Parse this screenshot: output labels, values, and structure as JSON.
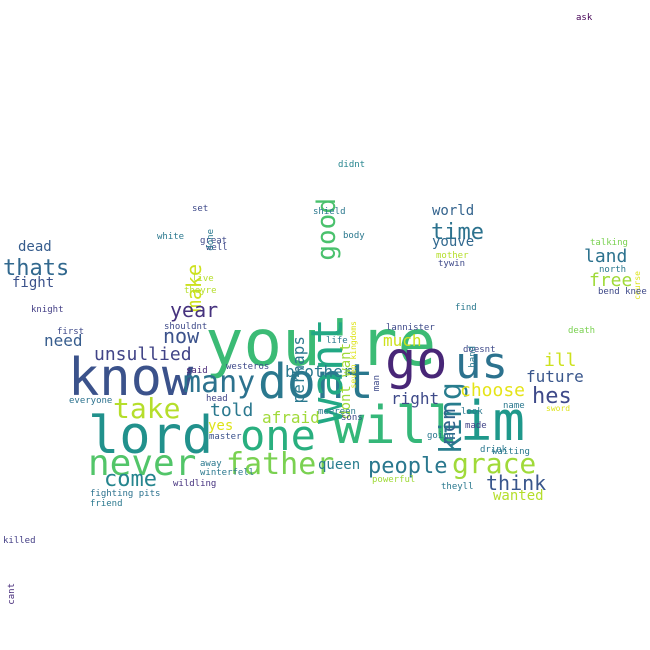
{
  "words": [
    {
      "text": "you're",
      "color": "#3bbb75"
    },
    {
      "text": "know",
      "color": "#3b528b"
    },
    {
      "text": "lord",
      "color": "#21918c"
    },
    {
      "text": "will",
      "color": "#35b779"
    },
    {
      "text": "im",
      "color": "#1f988b"
    },
    {
      "text": "dont",
      "color": "#2a788e"
    },
    {
      "text": "go",
      "color": "#482677"
    },
    {
      "text": "us",
      "color": "#2c728e"
    },
    {
      "text": "want",
      "color": "#22a884"
    },
    {
      "text": "one",
      "color": "#29af7f"
    },
    {
      "text": "never",
      "color": "#52c569"
    },
    {
      "text": "father",
      "color": "#7ad151"
    },
    {
      "text": "king",
      "color": "#287d8e"
    },
    {
      "text": "grace",
      "color": "#a0da39"
    },
    {
      "text": "many",
      "color": "#2c728e"
    },
    {
      "text": "good",
      "color": "#4ac16d"
    },
    {
      "text": "take",
      "color": "#b5de2b"
    },
    {
      "text": "people",
      "color": "#2a788e"
    },
    {
      "text": "hes",
      "color": "#3e4989"
    },
    {
      "text": "come",
      "color": "#25858e"
    },
    {
      "text": "thats",
      "color": "#31688e"
    },
    {
      "text": "time",
      "color": "#2c728e"
    },
    {
      "text": "men",
      "color": "#33638d"
    },
    {
      "text": "make",
      "color": "#cde11d"
    },
    {
      "text": "now",
      "color": "#3b528b"
    },
    {
      "text": "year",
      "color": "#46327e"
    },
    {
      "text": "think",
      "color": "#39568c"
    },
    {
      "text": "unsullied",
      "color": "#414487"
    },
    {
      "text": "told",
      "color": "#2a788e"
    },
    {
      "text": "choose",
      "color": "#e5e419"
    },
    {
      "text": "land",
      "color": "#2c728e"
    },
    {
      "text": "free",
      "color": "#a0da39"
    },
    {
      "text": "ill",
      "color": "#cde11d"
    },
    {
      "text": "future",
      "color": "#39568c"
    },
    {
      "text": "much",
      "color": "#cde11d"
    },
    {
      "text": "brother",
      "color": "#2a788e"
    },
    {
      "text": "need",
      "color": "#365c8d"
    },
    {
      "text": "queen",
      "color": "#287d8e"
    },
    {
      "text": "afraid",
      "color": "#a0da39"
    },
    {
      "text": "right",
      "color": "#3e4a89"
    },
    {
      "text": "perhaps",
      "color": "#2a788e"
    },
    {
      "text": "dont want",
      "color": "#a0da39"
    },
    {
      "text": "wanted",
      "color": "#b5de2b"
    },
    {
      "text": "world",
      "color": "#33638d"
    },
    {
      "text": "youve",
      "color": "#31688e"
    },
    {
      "text": "dead",
      "color": "#365c8d"
    },
    {
      "text": "fight",
      "color": "#3b528b"
    },
    {
      "text": "yes",
      "color": "#dde318"
    },
    {
      "text": "ask",
      "color": "#440154"
    },
    {
      "text": "killed",
      "color": "#433e85"
    },
    {
      "text": "cant",
      "color": "#472d7b"
    },
    {
      "text": "knight",
      "color": "#433e85"
    },
    {
      "text": "first",
      "color": "#3e4989"
    },
    {
      "text": "shouldnt",
      "color": "#3e4989"
    },
    {
      "text": "said",
      "color": "#482878"
    },
    {
      "text": "westeros",
      "color": "#3e4989"
    },
    {
      "text": "head",
      "color": "#414487"
    },
    {
      "text": "master",
      "color": "#3b528b"
    },
    {
      "text": "everyone",
      "color": "#2c728e"
    },
    {
      "text": "fighting pits",
      "color": "#2c728e"
    },
    {
      "text": "friend",
      "color": "#2a788e"
    },
    {
      "text": "wildling",
      "color": "#46337f"
    },
    {
      "text": "away",
      "color": "#2a788e"
    },
    {
      "text": "winterfell",
      "color": "#2a788e"
    },
    {
      "text": "live",
      "color": "#b5de2b"
    },
    {
      "text": "theyre",
      "color": "#b5de2b"
    },
    {
      "text": "white",
      "color": "#2a788e"
    },
    {
      "text": "great",
      "color": "#3e4989"
    },
    {
      "text": "well",
      "color": "#3e4989"
    },
    {
      "text": "set",
      "color": "#3e4989"
    },
    {
      "text": "done",
      "color": "#2a788e"
    },
    {
      "text": "shield",
      "color": "#2a788e"
    },
    {
      "text": "body",
      "color": "#2a788e"
    },
    {
      "text": "didnt",
      "color": "#25858e"
    },
    {
      "text": "seven kingdoms",
      "color": "#dde318"
    },
    {
      "text": "lannister",
      "color": "#3e4989"
    },
    {
      "text": "life",
      "color": "#2a788e"
    },
    {
      "text": "man",
      "color": "#3e4989"
    },
    {
      "text": "sons",
      "color": "#3e4989"
    },
    {
      "text": "meereen",
      "color": "#2a788e"
    },
    {
      "text": "powerful",
      "color": "#a0da39"
    },
    {
      "text": "going",
      "color": "#2a788e"
    },
    {
      "text": "theyll",
      "color": "#2a788e"
    },
    {
      "text": "made",
      "color": "#414487"
    },
    {
      "text": "look",
      "color": "#2a788e"
    },
    {
      "text": "doesnt",
      "color": "#3e4989"
    },
    {
      "text": "drink",
      "color": "#2a788e"
    },
    {
      "text": "waiting",
      "color": "#2a788e"
    },
    {
      "text": "name",
      "color": "#2a788e"
    },
    {
      "text": "sword",
      "color": "#dde318"
    },
    {
      "text": "find",
      "color": "#2a788e"
    },
    {
      "text": "hand",
      "color": "#2a788e"
    },
    {
      "text": "death",
      "color": "#7ad151"
    },
    {
      "text": "mother",
      "color": "#b5de2b"
    },
    {
      "text": "tywin",
      "color": "#3e4989"
    },
    {
      "text": "talking",
      "color": "#7ad151"
    },
    {
      "text": "north",
      "color": "#2a788e"
    },
    {
      "text": "course",
      "color": "#dde318"
    },
    {
      "text": "bend knee",
      "color": "#3e4989"
    }
  ]
}
